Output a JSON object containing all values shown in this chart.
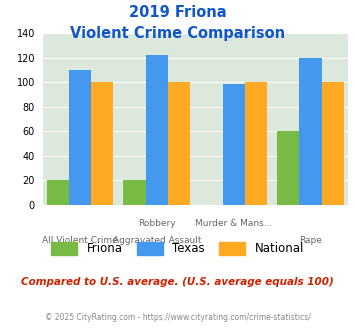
{
  "title_line1": "2019 Friona",
  "title_line2": "Violent Crime Comparison",
  "cat_labels_row1": [
    "",
    "Robbery",
    "Murder & Mans...",
    ""
  ],
  "cat_labels_row2": [
    "All Violent Crime",
    "Aggravated Assault",
    "",
    "Rape"
  ],
  "friona": [
    20,
    20,
    0,
    60
  ],
  "texas": [
    110,
    122,
    98,
    120
  ],
  "national": [
    100,
    100,
    100,
    100
  ],
  "friona_color": "#77bb44",
  "texas_color": "#4499ee",
  "national_color": "#ffaa22",
  "bg_color": "#dce8dc",
  "ylim": [
    0,
    140
  ],
  "yticks": [
    0,
    20,
    40,
    60,
    80,
    100,
    120,
    140
  ],
  "title_color": "#1155cc",
  "subtitle_note": "Compared to U.S. average. (U.S. average equals 100)",
  "subtitle_note_color": "#cc2200",
  "footer": "© 2025 CityRating.com - https://www.cityrating.com/crime-statistics/",
  "footer_color": "#888888",
  "legend_labels": [
    "Friona",
    "Texas",
    "National"
  ]
}
